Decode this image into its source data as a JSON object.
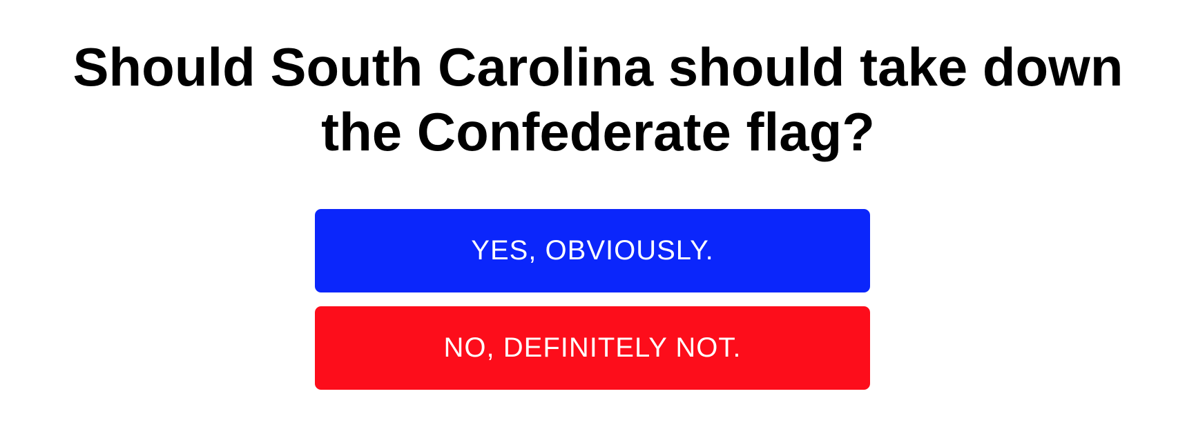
{
  "poll": {
    "question": "Should South Carolina should take down the Confederate flag?",
    "options": [
      {
        "label": "YES, OBVIOUSLY.",
        "color": "#0b26fb"
      },
      {
        "label": "NO, DEFINITELY NOT.",
        "color": "#fd0d1b"
      }
    ]
  },
  "colors": {
    "background": "#ffffff",
    "text": "#000000",
    "button_text": "#ffffff"
  }
}
